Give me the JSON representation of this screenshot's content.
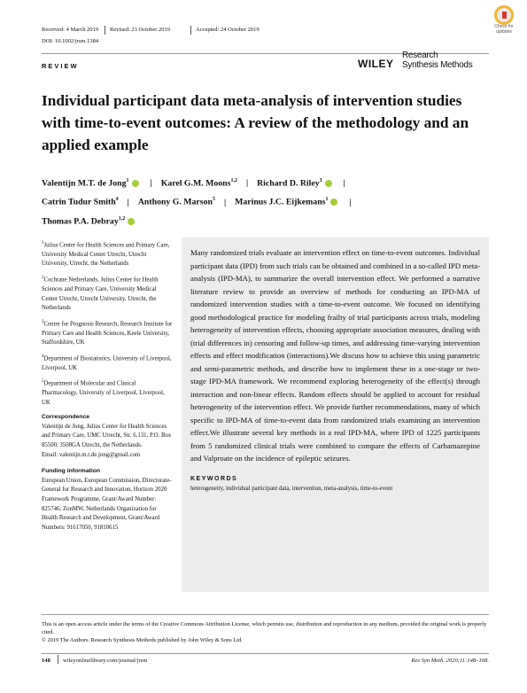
{
  "header": {
    "received": "Received: 4 March 2019",
    "revised": "Revised: 23 October 2019",
    "accepted": "Accepted: 24 October 2019",
    "doi": "DOI: 10.1002/jrsm.1384",
    "section": "REVIEW",
    "publisher": "WILEY",
    "journal": [
      "Research",
      "Synthesis Methods"
    ],
    "badge": [
      "Check for",
      "updates"
    ]
  },
  "title": "Individual participant data meta-analysis of intervention studies with time-to-event outcomes: A review of the methodology and an applied example",
  "authors": [
    {
      "name": "Valentijn M.T. de Jong",
      "aff": "1"
    },
    {
      "name": "Karel G.M. Moons",
      "aff": "1,2"
    },
    {
      "name": "Richard D. Riley",
      "aff": "3"
    },
    {
      "name": "Catrin Tudur Smith",
      "aff": "4"
    },
    {
      "name": "Anthony G. Marson",
      "aff": "5"
    },
    {
      "name": "Marinus J.C. Eijkemans",
      "aff": "1"
    },
    {
      "name": "Thomas P.A. Debray",
      "aff": "1,2"
    }
  ],
  "affiliations": [
    {
      "number": "1",
      "text": "Julius Center for Health Sciences and Primary Care, University Medical Center Utrecht, Utrecht University, Utrecht, the Netherlands"
    },
    {
      "number": "2",
      "text": "Cochrane Netherlands, Julius Center for Health Sciences and Primary Care, University Medical Center Utrecht, Utrecht University, Utrecht, the Netherlands"
    },
    {
      "number": "3",
      "text": "Centre for Prognosis Research, Research Institute for Primary Care and Health Sciences, Keele University, Staffordshire, UK"
    },
    {
      "number": "4",
      "text": "Department of Biostatistics, University of Liverpool, Liverpool, UK"
    },
    {
      "number": "5",
      "text": "Department of Molecular and Clinical Pharmacology, University of Liverpool, Liverpool, UK"
    }
  ],
  "correspondence": {
    "heading": "Correspondence",
    "text": "Valentijn de Jong, Julius Center for Health Sciences and Primary Care, UMC Utrecht, Str. 6.131, P.O. Box 85500, 3508GA Utrecht, the Netherlands.",
    "email": "Email: valentijn.m.t.de.jong@gmail.com"
  },
  "funding": {
    "heading": "Funding information",
    "text": "European Union, European Commission, Directorate-General for Research and Innovation, Horizon 2020 Framework Programme, Grant/Award Number: 825746; ZonMW, Netherlands Organization for Health Research and Development, Grant/Award Numbers: 91617050, 91810615"
  },
  "abstract": "Many randomized trials evaluate an intervention effect on time-to-event outcomes. Individual participant data (IPD) from such trials can be obtained and combined in a so-called IPD meta-analysis (IPD-MA), to summarize the overall intervention effect. We performed a narrative literature review to provide an overview of methods for conducting an IPD-MA of randomized intervention studies with a time-to-event outcome. We focused on identifying good methodological practice for modeling frailty of trial participants across trials, modeling heterogeneity of intervention effects, choosing appropriate association measures, dealing with (trial differences in) censoring and follow-up times, and addressing time-varying intervention effects and effect modification (interactions).We discuss how to achieve this using parametric and semi-parametric methods, and describe how to implement these in a one-stage or two-stage IPD-MA framework. We recommend exploring heterogeneity of the effect(s) through interaction and non-linear effects. Random effects should be applied to account for residual heterogeneity of the intervention effect. We provide further recommendations, many of which specific to IPD-MA of time-to-event data from randomized trials examining an intervention effect.We illustrate several key methods in a real IPD-MA, where IPD of 1225 participants from 5 randomized clinical trials were combined to compare the effects of Carbamazepine and Valproate on the incidence of epileptic seizures.",
  "keywords": {
    "heading": "KEYWORDS",
    "text": "heterogeneity, individual participant data, intervention, meta-analysis, time-to-event"
  },
  "footer": {
    "license": "This is an open access article under the terms of the Creative Commons Attribution License, which permits use, distribution and reproduction in any medium, provided the original work is properly cited.",
    "copyright": "© 2019 The Authors. Research Synthesis Methods published by John Wiley & Sons Ltd.",
    "page": "148",
    "url": "wileyonlinelibrary.com/journal/jrsm",
    "citation": "Res Syn Meth. 2020;11:148–168."
  }
}
